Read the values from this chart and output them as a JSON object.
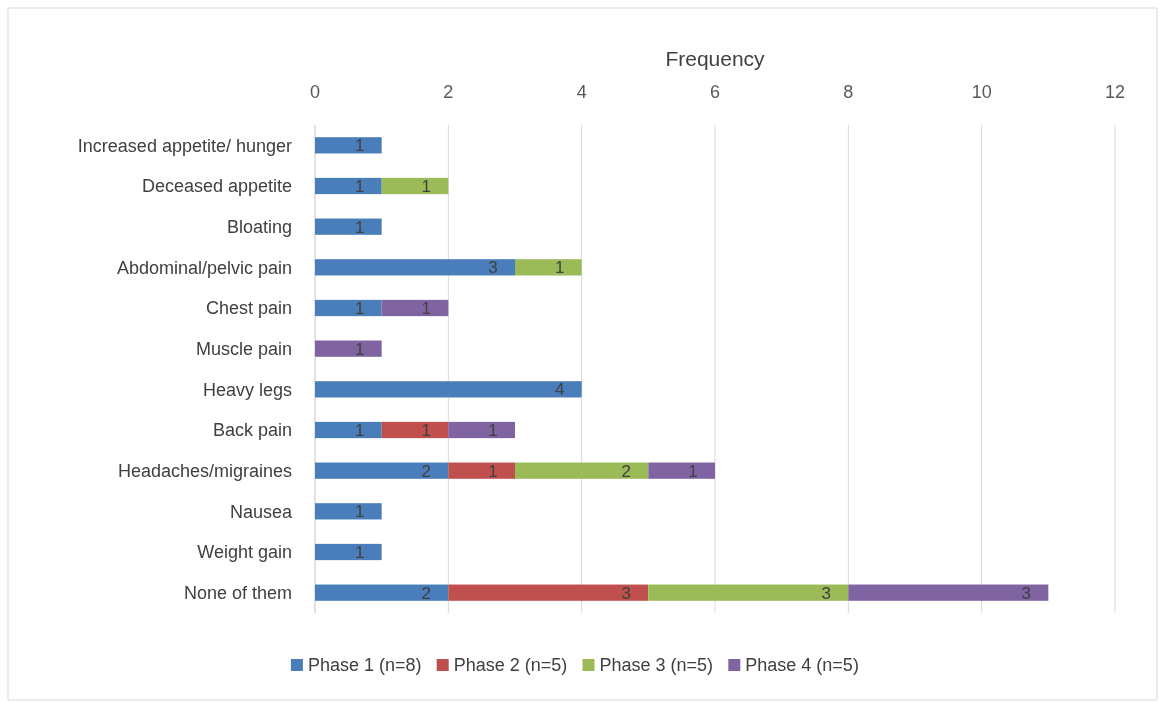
{
  "chart_data": {
    "type": "bar",
    "orientation": "horizontal",
    "stacked": true,
    "xlabel": "Frequency",
    "categories": [
      "Increased appetite/ hunger",
      "Deceased appetite",
      "Bloating",
      "Abdominal/pelvic pain",
      "Chest pain",
      "Muscle pain",
      "Heavy legs",
      "Back pain",
      "Headaches/migraines",
      "Nausea",
      "Weight gain",
      "None of them"
    ],
    "series": [
      {
        "name": "Phase 1 (n=8)",
        "color": "#4a7ebb",
        "values": [
          1,
          1,
          1,
          3,
          1,
          null,
          4,
          1,
          2,
          1,
          1,
          2
        ]
      },
      {
        "name": "Phase 2 (n=5)",
        "color": "#c0504d",
        "values": [
          null,
          null,
          null,
          null,
          null,
          null,
          null,
          1,
          1,
          null,
          null,
          3
        ]
      },
      {
        "name": "Phase 3 (n=5)",
        "color": "#9bbb59",
        "values": [
          null,
          1,
          null,
          1,
          null,
          null,
          null,
          null,
          2,
          null,
          null,
          3
        ]
      },
      {
        "name": "Phase 4 (n=5)",
        "color": "#8064a2",
        "values": [
          null,
          null,
          null,
          null,
          1,
          1,
          null,
          1,
          1,
          null,
          null,
          3
        ]
      }
    ],
    "xlim": [
      0,
      12
    ],
    "xticks": [
      0,
      2,
      4,
      6,
      8,
      10,
      12
    ],
    "grid": "x",
    "legend": "bottom",
    "data_labels": true
  }
}
